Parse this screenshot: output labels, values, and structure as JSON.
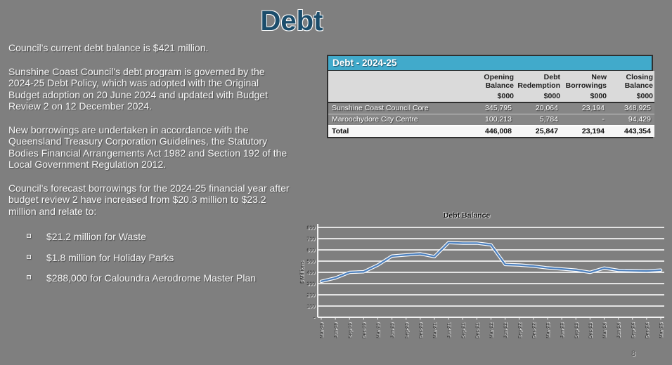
{
  "slide": {
    "title": "Debt",
    "page_number": "8",
    "background_color": "#7f7f7f",
    "title_color": "#1b4d6b"
  },
  "paragraphs": [
    "Council's current debt balance is $421 million.",
    "Sunshine Coast Council's debt program is governed by the 2024-25 Debt Policy, which was adopted with the Original Budget adoption on 20 June 2024 and updated with Budget Review 2 on 12 December 2024.",
    "New borrowings are undertaken in accordance with the Queensland Treasury Corporation Guidelines, the Statutory Bodies Financial Arrangements Act 1982 and Section 192 of the Local Government Regulation 2012.",
    "Council's forecast borrowings for the 2024-25 financial year after budget review 2 have increased from $20.3 million to $23.2 million and relate to:"
  ],
  "bullets": [
    "$21.2 million for Waste",
    "$1.8 million for Holiday Parks",
    "$288,000 for Caloundra Aerodrome Master Plan"
  ],
  "table": {
    "title": "Debt - 2024-25",
    "header_color": "#41aacb",
    "columns": [
      "Opening Balance",
      "Debt Redemption",
      "New Borrowings",
      "Closing Balance"
    ],
    "unit": "$000",
    "rows": [
      {
        "label": "Sunshine Coast Council Core",
        "values": [
          "345,795",
          "20,064",
          "23,194",
          "348,925"
        ]
      },
      {
        "label": "Maroochydore City Centre",
        "values": [
          "100,213",
          "5,784",
          "-",
          "94,429"
        ]
      }
    ],
    "total": {
      "label": "Total",
      "values": [
        "446,008",
        "25,847",
        "23,194",
        "443,354"
      ]
    }
  },
  "chart_data": {
    "type": "line",
    "title": "Debt Balance",
    "xlabel": "",
    "ylabel": "$ Millions",
    "ylim": [
      0,
      800
    ],
    "ytick_interval": 100,
    "zero_tick_label": "-",
    "grid": true,
    "legend": "none",
    "line_color": "#4d80bd",
    "line_casing_color": "#fdfdfd",
    "categories": [
      "Mar-19",
      "Jun-19",
      "Sep-19",
      "Dec-19",
      "Mar-20",
      "Jun-20",
      "Sep-20",
      "Dec-20",
      "Mar-21",
      "Jun-21",
      "Sep-21",
      "Dec-21",
      "Mar-22",
      "Jun-22",
      "Sep-22",
      "Dec-22",
      "Mar-23",
      "Jun-23",
      "Sep-23",
      "Dec-23",
      "Mar-24",
      "Jun-24",
      "Sep-24",
      "Dec-24",
      "Mar-25"
    ],
    "series": [
      {
        "name": "Debt Balance",
        "values": [
          320,
          350,
          400,
          405,
          465,
          545,
          555,
          565,
          540,
          665,
          660,
          660,
          645,
          470,
          465,
          455,
          440,
          430,
          420,
          400,
          438,
          418,
          415,
          412,
          420
        ]
      }
    ]
  }
}
